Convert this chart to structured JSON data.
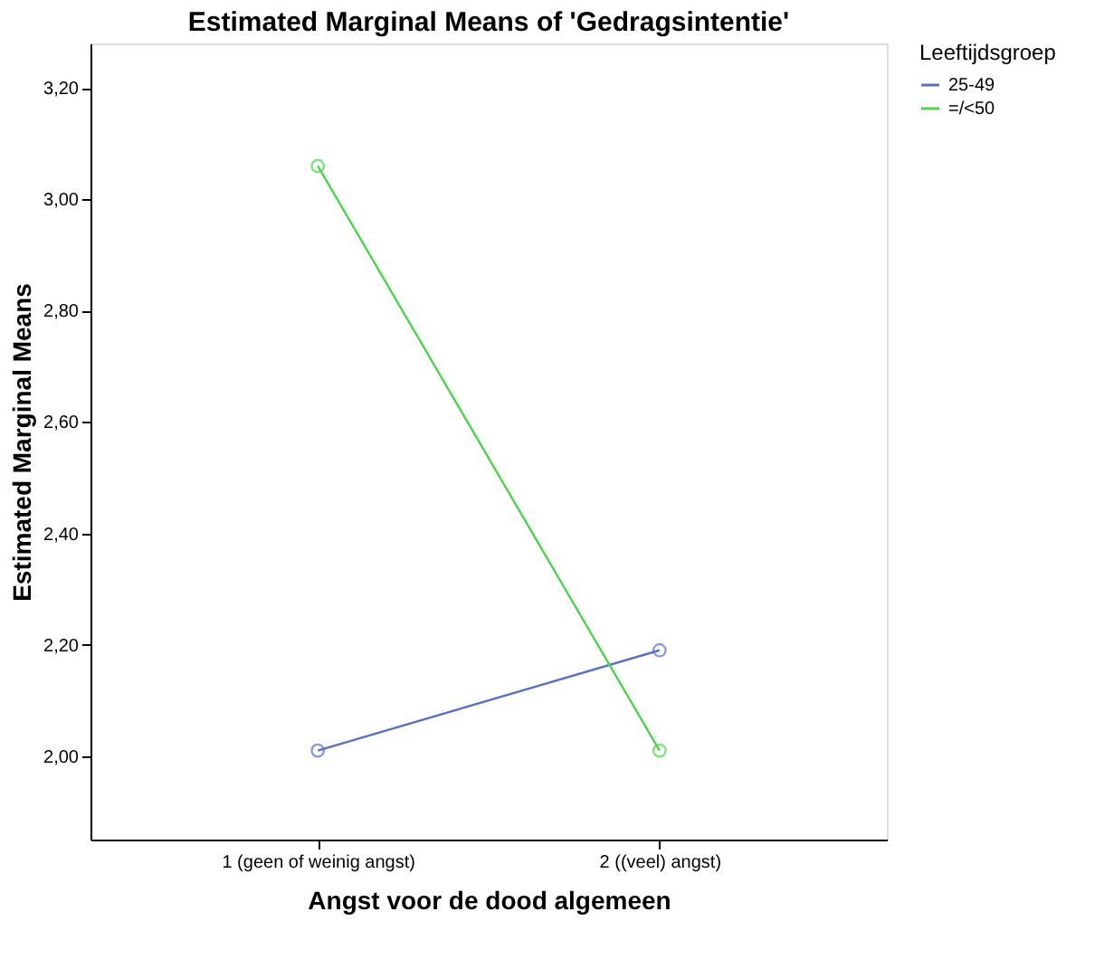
{
  "chart_data": {
    "type": "line",
    "title": "Estimated Marginal Means of 'Gedragsintentie'",
    "xlabel": "Angst voor de dood algemeen",
    "ylabel": "Estimated Marginal Means",
    "legend_title": "Leeftijdsgroep",
    "legend": "top right",
    "marker": "circle",
    "line_style": "solid",
    "grid": false,
    "categories": [
      "1 (geen of weinig angst)",
      "2 ((veel) angst)"
    ],
    "series": [
      {
        "name": "25-49",
        "color": "#5a6fc8",
        "values": [
          2.01,
          2.19
        ]
      },
      {
        "name": "=/<50",
        "color": "#4fd24f",
        "values": [
          3.06,
          2.01
        ]
      }
    ],
    "ylim": [
      1.85,
      3.28
    ],
    "yticks": [
      {
        "value": 2.0,
        "label": "2,00"
      },
      {
        "value": 2.2,
        "label": "2,20"
      },
      {
        "value": 2.4,
        "label": "2,40"
      },
      {
        "value": 2.6,
        "label": "2,60"
      },
      {
        "value": 2.8,
        "label": "2,80"
      },
      {
        "value": 3.0,
        "label": "3,00"
      },
      {
        "value": 3.2,
        "label": "3,20"
      }
    ]
  }
}
